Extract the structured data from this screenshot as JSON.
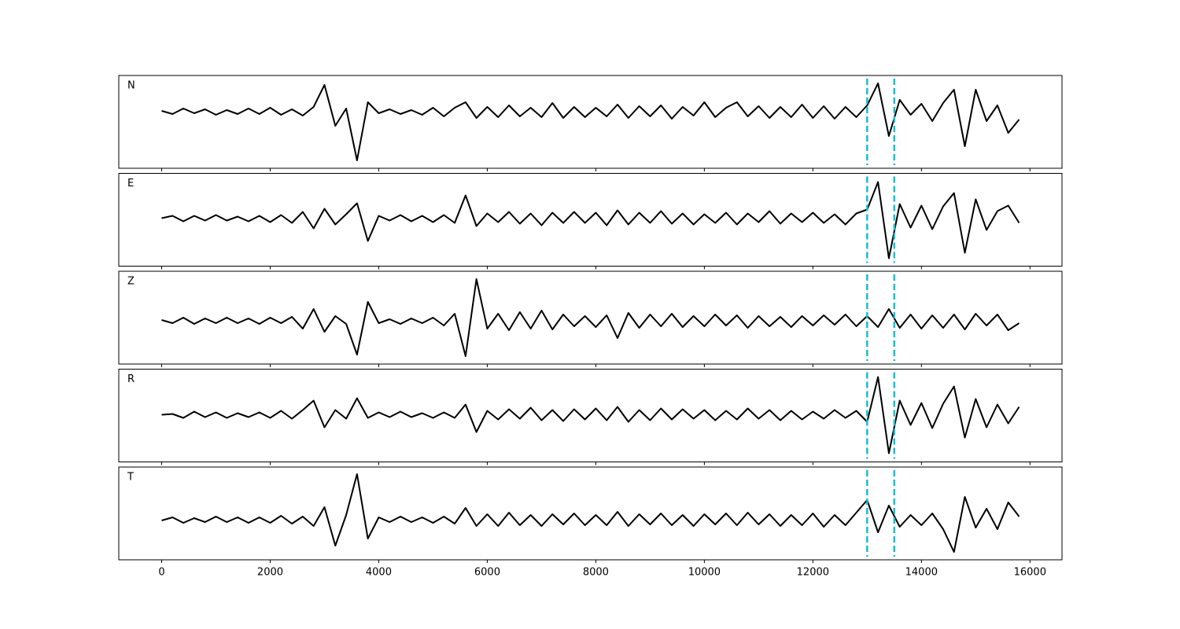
{
  "chart_data": {
    "type": "line",
    "x": [
      0,
      200,
      400,
      600,
      800,
      1000,
      1200,
      1400,
      1600,
      1800,
      2000,
      2200,
      2400,
      2600,
      2800,
      3000,
      3200,
      3400,
      3600,
      3800,
      4000,
      4200,
      4400,
      4600,
      4800,
      5000,
      5200,
      5400,
      5600,
      5800,
      6000,
      6200,
      6400,
      6600,
      6800,
      7000,
      7200,
      7400,
      7600,
      7800,
      8000,
      8200,
      8400,
      8600,
      8800,
      9000,
      9200,
      9400,
      9600,
      9800,
      10000,
      10200,
      10400,
      10600,
      10800,
      11000,
      11200,
      11400,
      11600,
      11800,
      12000,
      12200,
      12400,
      12600,
      12800,
      13000,
      13200,
      13400,
      13600,
      13800,
      14000,
      14200,
      14400,
      14600,
      14800,
      15000,
      15200,
      15400,
      15600,
      15800
    ],
    "xlim": [
      -790,
      16590
    ],
    "xticks": [
      0,
      2000,
      4000,
      6000,
      8000,
      10000,
      12000,
      14000,
      16000
    ],
    "vlines": [
      13000,
      13500
    ],
    "vline_color": "#17becf",
    "series": [
      {
        "name": "N",
        "color": "#000000",
        "ylim": [
          -7.2,
          4.6
        ],
        "values": [
          0.1,
          -0.3,
          0.4,
          -0.2,
          0.3,
          -0.4,
          0.2,
          -0.3,
          0.4,
          -0.3,
          0.5,
          -0.4,
          0.3,
          -0.5,
          0.6,
          3.4,
          -1.8,
          0.4,
          -6.2,
          1.2,
          -0.2,
          0.3,
          -0.3,
          0.2,
          -0.4,
          0.5,
          -0.6,
          0.5,
          1.2,
          -0.8,
          0.6,
          -0.7,
          0.8,
          -0.6,
          0.5,
          -0.7,
          1.1,
          -0.8,
          0.6,
          -0.7,
          0.5,
          -0.6,
          0.9,
          -0.8,
          0.7,
          -0.6,
          0.8,
          -0.9,
          0.6,
          -0.5,
          1.2,
          -0.7,
          0.5,
          1.2,
          -0.6,
          0.7,
          -0.8,
          0.6,
          -0.7,
          0.9,
          -0.8,
          0.7,
          -0.9,
          0.6,
          -0.7,
          0.8,
          3.6,
          -3.1,
          1.5,
          -0.4,
          1.0,
          -1.2,
          1.1,
          2.8,
          -4.4,
          2.8,
          -1.2,
          0.8,
          -2.7,
          -1.0
        ]
      },
      {
        "name": "E",
        "color": "#000000",
        "ylim": [
          -6.1,
          5.7
        ],
        "values": [
          0.0,
          0.3,
          -0.4,
          0.3,
          -0.3,
          0.4,
          -0.3,
          0.2,
          -0.4,
          0.3,
          -0.5,
          0.4,
          -0.6,
          0.8,
          -1.3,
          1.2,
          -0.8,
          0.5,
          1.9,
          -2.9,
          0.3,
          -0.3,
          0.4,
          -0.4,
          0.3,
          -0.5,
          0.4,
          -0.6,
          2.9,
          -1.0,
          0.6,
          -0.5,
          0.8,
          -0.7,
          0.6,
          -0.9,
          0.7,
          -0.6,
          0.8,
          -0.6,
          0.7,
          -0.9,
          1.0,
          -0.8,
          0.7,
          -0.6,
          0.9,
          -0.7,
          0.6,
          -0.8,
          0.5,
          -0.6,
          0.7,
          -0.8,
          0.6,
          -0.5,
          0.9,
          -0.7,
          0.6,
          -0.5,
          0.7,
          -0.6,
          0.5,
          -0.8,
          0.6,
          1.1,
          4.6,
          -5.1,
          1.8,
          -1.2,
          1.6,
          -1.4,
          1.5,
          3.2,
          -4.4,
          2.4,
          -1.5,
          0.9,
          1.6,
          -0.6
        ]
      },
      {
        "name": "Z",
        "color": "#000000",
        "ylim": [
          -5.5,
          6.3
        ],
        "values": [
          0.1,
          -0.3,
          0.4,
          -0.4,
          0.3,
          -0.3,
          0.4,
          -0.3,
          0.3,
          -0.4,
          0.4,
          -0.3,
          0.5,
          -1.0,
          1.5,
          -1.4,
          0.6,
          -0.4,
          -4.3,
          2.4,
          -0.3,
          0.2,
          -0.4,
          0.3,
          -0.3,
          0.4,
          -0.6,
          0.9,
          -4.5,
          5.3,
          -1.0,
          0.9,
          -1.2,
          1.1,
          -1.0,
          1.3,
          -1.1,
          0.8,
          -0.7,
          0.6,
          -0.8,
          0.7,
          -2.2,
          1.0,
          -0.9,
          0.8,
          -0.7,
          0.9,
          -0.8,
          0.6,
          -0.7,
          0.8,
          -0.6,
          0.7,
          -0.9,
          0.6,
          -0.7,
          0.5,
          -0.8,
          0.6,
          -0.6,
          0.7,
          -0.5,
          0.8,
          -0.7,
          0.6,
          -0.8,
          1.5,
          -0.9,
          0.8,
          -1.0,
          0.7,
          -0.9,
          0.8,
          -1.1,
          0.9,
          -0.6,
          0.8,
          -1.2,
          -0.3
        ]
      },
      {
        "name": "R",
        "color": "#000000",
        "ylim": [
          -6.0,
          5.8
        ],
        "values": [
          0.0,
          0.1,
          -0.4,
          0.4,
          -0.3,
          0.3,
          -0.4,
          0.2,
          -0.3,
          0.3,
          -0.4,
          0.5,
          -0.5,
          0.6,
          1.8,
          -1.6,
          0.6,
          -0.5,
          2.1,
          -0.4,
          0.3,
          -0.3,
          0.4,
          -0.3,
          0.2,
          -0.4,
          0.3,
          -0.4,
          1.3,
          -2.2,
          0.5,
          -0.6,
          0.7,
          -0.5,
          0.9,
          -0.7,
          0.6,
          -0.8,
          0.7,
          -0.6,
          0.8,
          -0.7,
          1.0,
          -0.9,
          0.6,
          -0.7,
          0.8,
          -0.6,
          0.7,
          -0.5,
          0.6,
          -0.7,
          0.5,
          -0.6,
          0.8,
          -0.5,
          0.6,
          -0.7,
          0.5,
          -0.6,
          0.4,
          -0.5,
          0.6,
          -0.4,
          0.5,
          -0.9,
          4.8,
          -4.9,
          1.8,
          -1.3,
          1.5,
          -1.7,
          1.4,
          3.6,
          -2.9,
          2.0,
          -1.6,
          1.3,
          -1.1,
          1.0
        ]
      },
      {
        "name": "T",
        "color": "#000000",
        "ylim": [
          -5.1,
          6.7
        ],
        "values": [
          -0.1,
          0.3,
          -0.4,
          0.2,
          -0.3,
          0.4,
          -0.3,
          0.3,
          -0.4,
          0.3,
          -0.4,
          0.5,
          -0.5,
          0.4,
          -0.8,
          1.6,
          -3.3,
          0.6,
          5.8,
          -2.4,
          0.3,
          -0.3,
          0.4,
          -0.3,
          0.3,
          -0.4,
          0.4,
          -0.5,
          1.5,
          -0.8,
          0.7,
          -0.8,
          0.9,
          -0.7,
          0.6,
          -0.8,
          0.7,
          -0.6,
          0.8,
          -0.7,
          0.6,
          -0.7,
          1.0,
          -0.8,
          0.7,
          -0.6,
          0.8,
          -0.7,
          0.6,
          -0.8,
          0.7,
          -0.6,
          0.8,
          -0.7,
          0.9,
          -0.6,
          0.7,
          -0.8,
          0.6,
          -0.7,
          0.8,
          -0.9,
          0.6,
          -0.7,
          0.9,
          2.5,
          -1.6,
          1.8,
          -0.9,
          0.6,
          -0.7,
          0.8,
          -1.2,
          -4.1,
          2.9,
          -1.0,
          1.4,
          -1.2,
          2.2,
          0.4
        ]
      }
    ]
  }
}
